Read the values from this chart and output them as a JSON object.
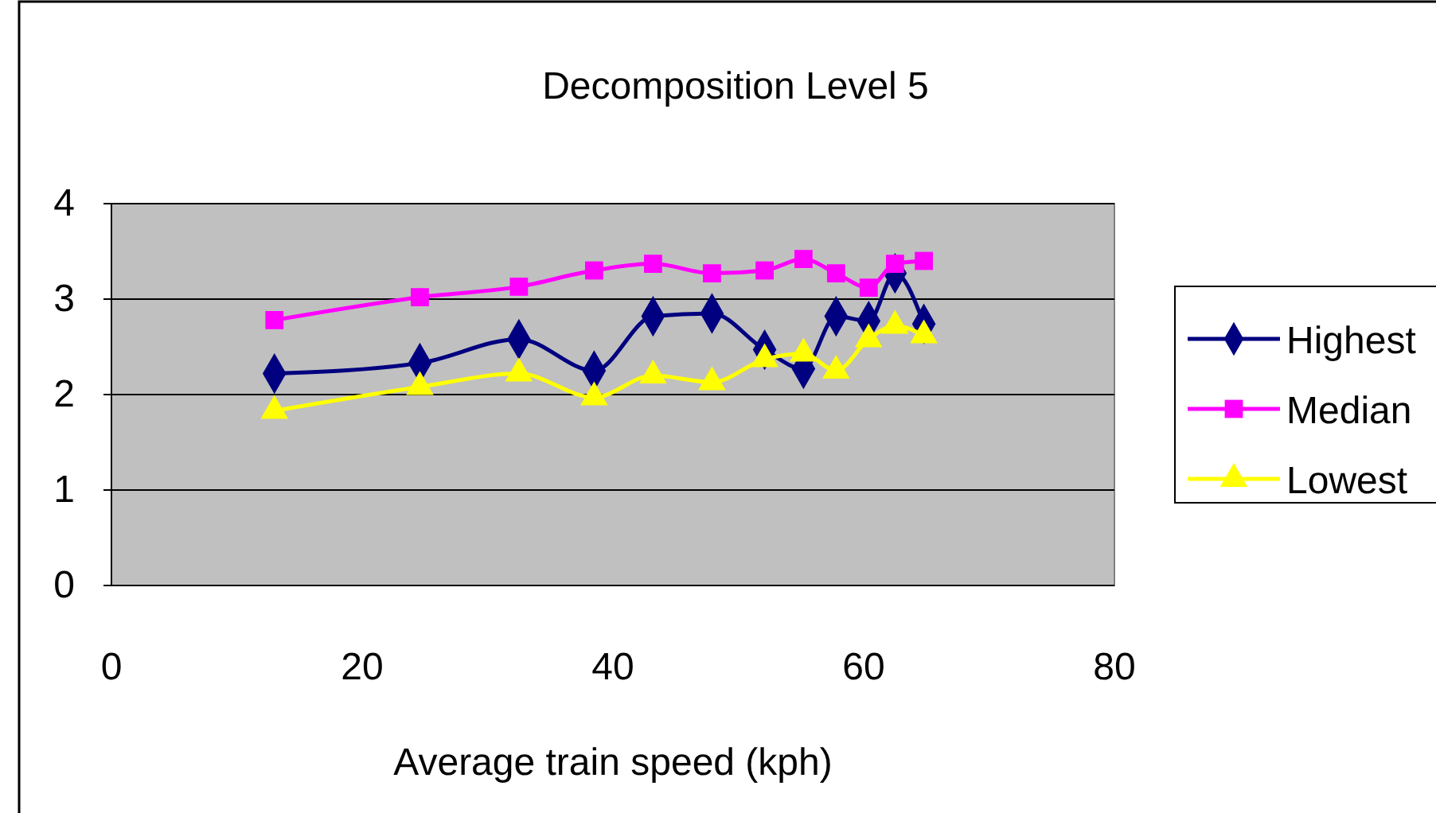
{
  "chart_data": {
    "type": "line",
    "title": "Decomposition Level 5",
    "xlabel": "Average train speed (kph)",
    "x": [
      13,
      24.6,
      32.5,
      38.5,
      43.2,
      47.9,
      52.1,
      55.2,
      57.8,
      60.4,
      62.5,
      64.8
    ],
    "series": [
      {
        "name": "Highest",
        "color": "#000080",
        "marker": "diamond",
        "values": [
          2.22,
          2.33,
          2.58,
          2.25,
          2.82,
          2.85,
          2.47,
          2.27,
          2.82,
          2.77,
          3.27,
          2.74
        ]
      },
      {
        "name": "Median",
        "color": "#ff00ff",
        "marker": "square",
        "values": [
          2.78,
          3.02,
          3.13,
          3.3,
          3.37,
          3.27,
          3.3,
          3.42,
          3.27,
          3.12,
          3.37,
          3.4
        ]
      },
      {
        "name": "Lowest",
        "color": "#ffff00",
        "marker": "triangle",
        "values": [
          1.83,
          2.08,
          2.22,
          1.97,
          2.2,
          2.13,
          2.37,
          2.43,
          2.25,
          2.58,
          2.72,
          2.62
        ]
      }
    ],
    "xlim": [
      0,
      80
    ],
    "xticks": [
      0,
      20,
      40,
      60,
      80
    ],
    "ylim": [
      0,
      4
    ],
    "yticks": [
      0,
      1,
      2,
      3,
      4
    ],
    "grid": "y",
    "legend": "right",
    "line_style": "solid"
  }
}
